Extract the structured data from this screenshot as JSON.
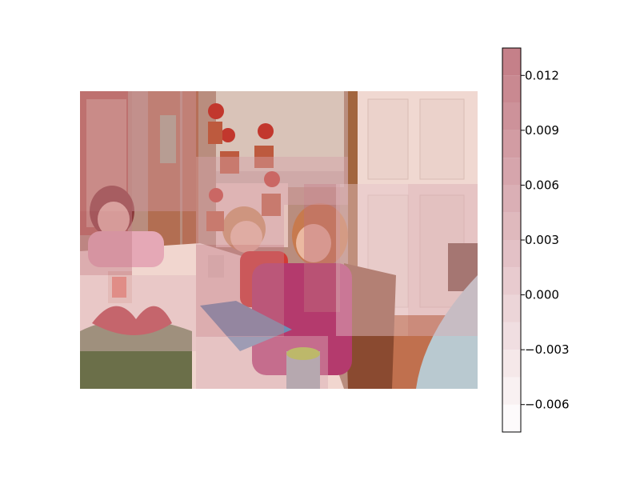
{
  "chart_data": {
    "type": "heatmap",
    "title": "",
    "xlabel": "",
    "ylabel": "",
    "background": "photo of children at a dining table decorated for Christmas",
    "overlay_cmap": "white-to-red",
    "grid": false,
    "colorbar": {
      "range": [
        -0.0075,
        0.0135
      ],
      "levels": [
        -0.0075,
        -0.006,
        -0.0045,
        -0.003,
        -0.0015,
        0.0,
        0.0015,
        0.003,
        0.0045,
        0.006,
        0.0075,
        0.009,
        0.0105,
        0.012,
        0.0135
      ],
      "ticks": [
        -0.006,
        -0.003,
        0.0,
        0.003,
        0.006,
        0.009,
        0.012
      ],
      "tick_labels": [
        "−0.006",
        "−0.003",
        "0.000",
        "0.003",
        "0.006",
        "0.009",
        "0.012"
      ],
      "low_color": "#ffffff",
      "high_color": "#b45a66"
    },
    "patch_values": [
      0.0075,
      0.009,
      0.0105,
      0.006,
      0.0045,
      0.009,
      0.0045,
      0.0015,
      0.0,
      0.003,
      0.003,
      0.003
    ]
  }
}
